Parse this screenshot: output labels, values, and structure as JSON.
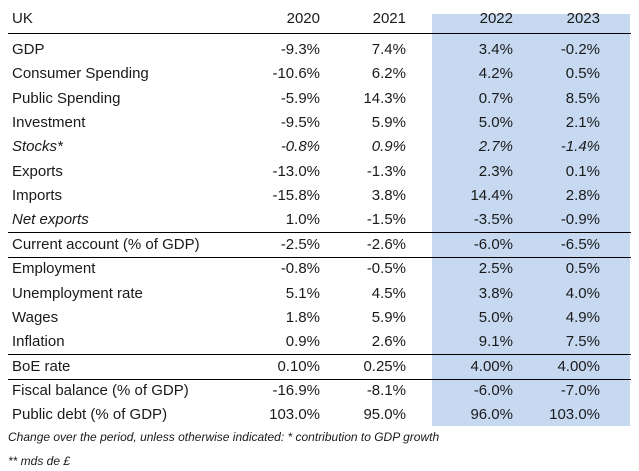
{
  "table": {
    "header": [
      "UK",
      "2020",
      "2021",
      "2022",
      "2023"
    ],
    "rows": [
      [
        "GDP",
        "-9.3%",
        "7.4%",
        "3.4%",
        "-0.2%"
      ],
      [
        "Consumer Spending",
        "-10.6%",
        "6.2%",
        "4.2%",
        "0.5%"
      ],
      [
        "Public Spending",
        "-5.9%",
        "14.3%",
        "0.7%",
        "8.5%"
      ],
      [
        "Investment",
        "-9.5%",
        "5.9%",
        "5.0%",
        "2.1%"
      ],
      [
        "Stocks*",
        "-0.8%",
        "0.9%",
        "2.7%",
        "-1.4%"
      ],
      [
        "Exports",
        "-13.0%",
        "-1.3%",
        "2.3%",
        "0.1%"
      ],
      [
        "Imports",
        "-15.8%",
        "3.8%",
        "14.4%",
        "2.8%"
      ],
      [
        "Net exports",
        "1.0%",
        "-1.5%",
        "-3.5%",
        "-0.9%"
      ],
      [
        "Current account (% of GDP)",
        "-2.5%",
        "-2.6%",
        "-6.0%",
        "-6.5%"
      ],
      [
        "Employment",
        "-0.8%",
        "-0.5%",
        "2.5%",
        "0.5%"
      ],
      [
        "Unemployment rate",
        "5.1%",
        "4.5%",
        "3.8%",
        "4.0%"
      ],
      [
        "Wages",
        "1.8%",
        "5.9%",
        "5.0%",
        "4.9%"
      ],
      [
        "Inflation",
        "0.9%",
        "2.6%",
        "9.1%",
        "7.5%"
      ],
      [
        "BoE rate",
        "0.10%",
        "0.25%",
        "4.00%",
        "4.00%"
      ],
      [
        "Fiscal balance (% of GDP)",
        "-16.9%",
        "-8.1%",
        "-6.0%",
        "-7.0%"
      ],
      [
        "Public debt (% of GDP)",
        "103.0%",
        "95.0%",
        "96.0%",
        "103.0%"
      ]
    ],
    "notes": [
      "Change over the period, unless otherwise indicated: * contribution to GDP growth",
      "** mds de £"
    ]
  }
}
